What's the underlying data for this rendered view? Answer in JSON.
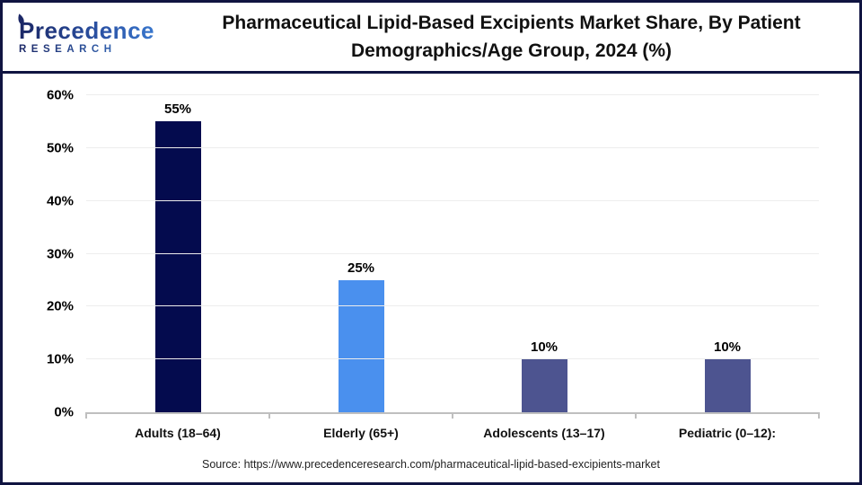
{
  "header": {
    "logo": {
      "name": "Precedence",
      "sub": "RESEARCH"
    },
    "title": "Pharmaceutical Lipid-Based Excipients Market Share, By Patient Demographics/Age Group, 2024 (%)"
  },
  "chart_data": {
    "type": "bar",
    "title": "Pharmaceutical Lipid-Based Excipients Market Share, By Patient Demographics/Age Group, 2024 (%)",
    "categories": [
      "Adults (18–64)",
      "Elderly (65+)",
      "Adolescents (13–17)",
      "Pediatric (0–12):"
    ],
    "values": [
      55,
      25,
      10,
      10
    ],
    "value_labels": [
      "55%",
      "25%",
      "10%",
      "10%"
    ],
    "y_ticks": [
      "0%",
      "10%",
      "20%",
      "30%",
      "40%",
      "50%",
      "60%"
    ],
    "ylim": [
      0,
      60
    ],
    "xlabel": "",
    "ylabel": "",
    "grid": true,
    "legend": false,
    "bar_colors": [
      "#040b4e",
      "#4a90ee",
      "#4d5490",
      "#4d5490"
    ]
  },
  "footer": {
    "source": "Source: https://www.precedenceresearch.com/pharmaceutical-lipid-based-excipients-market"
  },
  "colors": {
    "frame_border": "#101441",
    "gridline": "#ededed",
    "axis_line": "#bfbfbf"
  }
}
